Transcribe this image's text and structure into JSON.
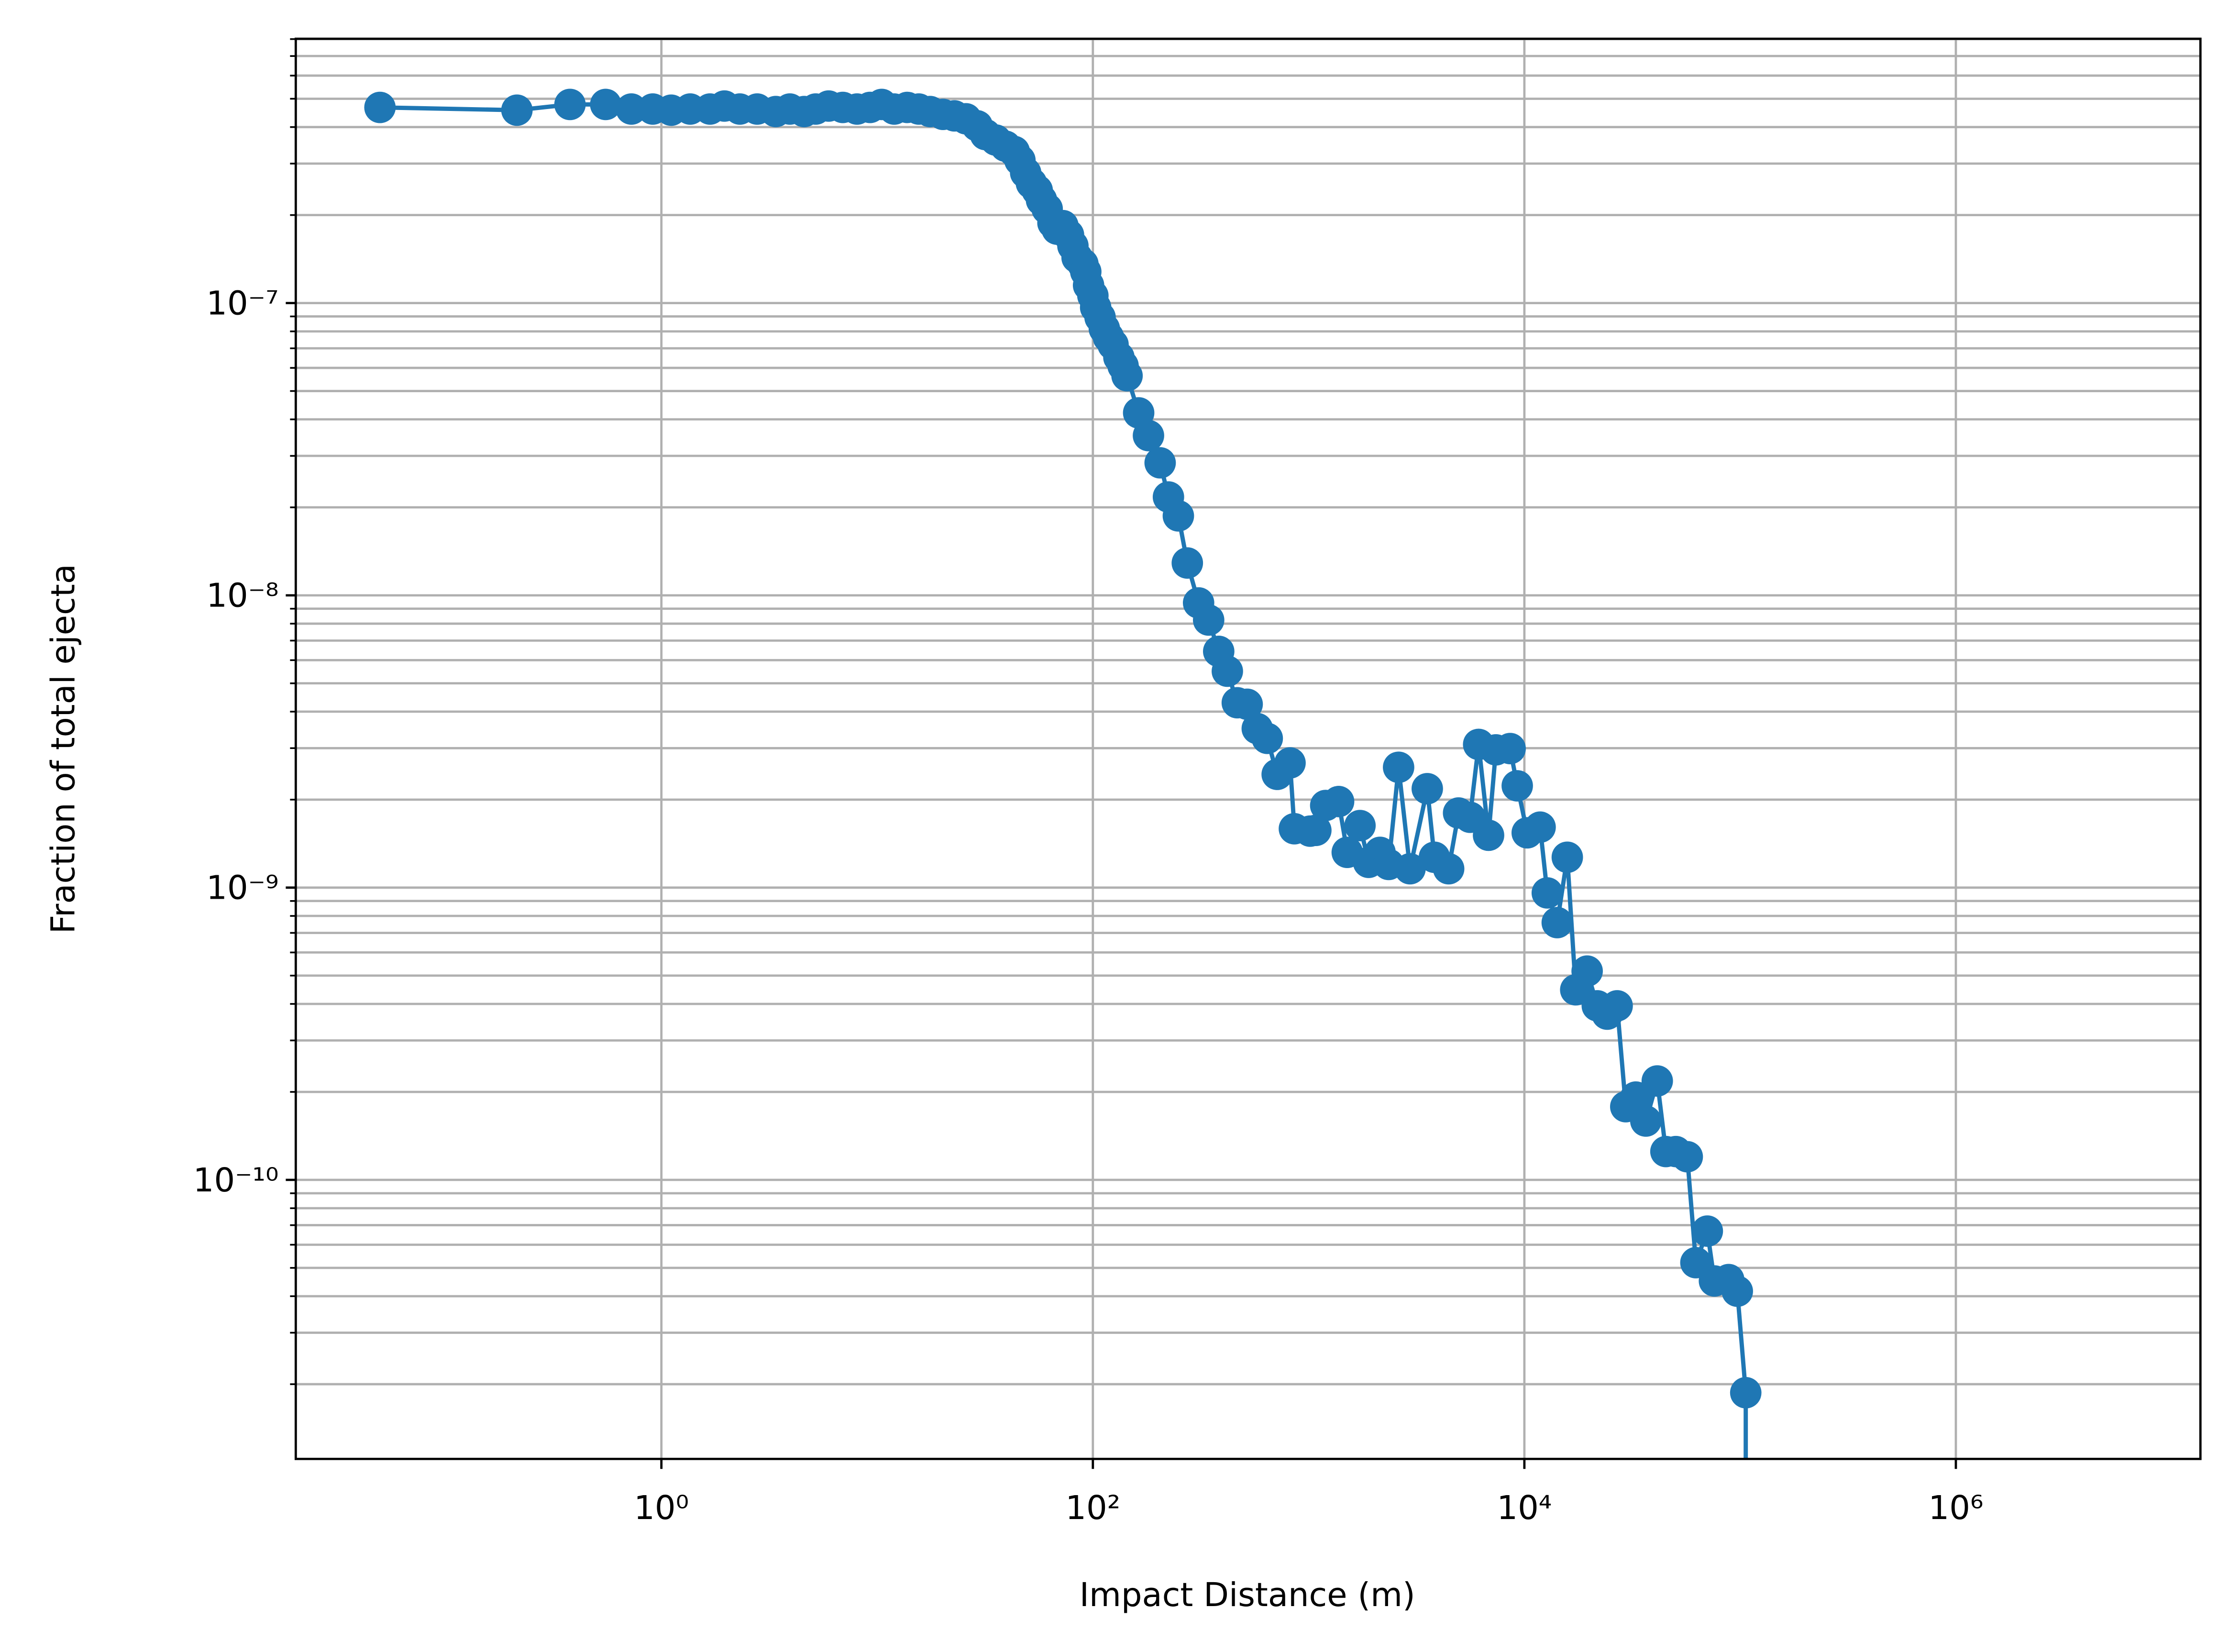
{
  "chart_data": {
    "type": "line",
    "x_label": "Impact Distance (m)",
    "y_label": "Fraction of total ejecta",
    "xscale": "log",
    "yscale": "log",
    "grid": true,
    "minor_grid": true,
    "color": "#1f77b4",
    "marker": "circle",
    "xlim": [
      0.0202,
      13600000
    ],
    "ylim": [
      1.11e-11,
      8.02e-07
    ],
    "xticks": [
      {
        "value": 1,
        "label": "10⁰"
      },
      {
        "value": 100,
        "label": "10²"
      },
      {
        "value": 10000,
        "label": "10⁴"
      },
      {
        "value": 1000000,
        "label": "10⁶"
      }
    ],
    "yticks": [
      {
        "value": 1e-10,
        "label": "10⁻¹⁰"
      },
      {
        "value": 1e-09,
        "label": "10⁻⁹"
      },
      {
        "value": 1e-08,
        "label": "10⁻⁸"
      },
      {
        "value": 1e-07,
        "label": "10⁻⁷"
      }
    ],
    "yminorticks": [
      2e-11,
      3e-11,
      4e-11,
      5e-11,
      6e-11,
      7e-11,
      8e-11,
      9e-11,
      2e-10,
      3e-10,
      4e-10,
      5e-10,
      6e-10,
      7e-10,
      8e-10,
      9e-10,
      2e-09,
      3e-09,
      4e-09,
      5e-09,
      6e-09,
      7e-09,
      8e-09,
      9e-09,
      2e-08,
      3e-08,
      4e-08,
      5e-08,
      6e-08,
      7e-08,
      8e-08,
      9e-08,
      2e-07,
      3e-07,
      4e-07,
      5e-07,
      6e-07,
      7e-07,
      8e-07
    ],
    "x": [
      0.0496,
      0.214,
      0.377,
      0.552,
      0.726,
      0.912,
      1.11,
      1.36,
      1.68,
      1.96,
      2.31,
      2.78,
      3.39,
      3.94,
      4.59,
      5.19,
      5.96,
      6.93,
      8.07,
      9.27,
      10.5,
      12.0,
      13.8,
      15.6,
      17.6,
      20.2,
      22.8,
      25.8,
      29.1,
      31.8,
      35.5,
      39.4,
      43.2,
      45.9,
      48.8,
      51.9,
      55.2,
      57.8,
      61.4,
      65.3,
      68.3,
      72.6,
      77.1,
      80.8,
      84.5,
      89.9,
      92.7,
      95.5,
      100,
      103,
      108,
      113,
      118,
      124,
      132,
      138,
      144,
      163,
      181,
      205,
      224,
      249,
      274,
      309,
      344,
      383,
      420,
      467,
      519,
      578,
      643,
      715,
      820,
      859,
      1016,
      1080,
      1200,
      1377,
      1510,
      1730,
      1897,
      2143,
      2350,
      2612,
      2951,
      3548,
      3828,
      4457,
      4955,
      5598,
      6138,
      6823,
      7379,
      8590,
      9268,
      10310,
      11830,
      12770,
      14200,
      15810,
      17300,
      19540,
      21780,
      24210,
      26920,
      29510,
      32890,
      36560,
      41300,
      45290,
      50350,
      56890,
      62370,
      70470,
      76030,
      88510,
      97050,
      106200,
      106200
    ],
    "values": [
      4.67e-07,
      4.57e-07,
      4.78e-07,
      4.78e-07,
      4.61e-07,
      4.61e-07,
      4.57e-07,
      4.61e-07,
      4.61e-07,
      4.72e-07,
      4.61e-07,
      4.61e-07,
      4.52e-07,
      4.61e-07,
      4.52e-07,
      4.61e-07,
      4.72e-07,
      4.67e-07,
      4.61e-07,
      4.67e-07,
      4.78e-07,
      4.61e-07,
      4.67e-07,
      4.61e-07,
      4.52e-07,
      4.42e-07,
      4.37e-07,
      4.27e-07,
      4.04e-07,
      3.77e-07,
      3.61e-07,
      3.44e-07,
      3.3e-07,
      3.08e-07,
      2.79e-07,
      2.57e-07,
      2.43e-07,
      2.25e-07,
      2.1e-07,
      1.88e-07,
      1.79e-07,
      1.84e-07,
      1.71e-07,
      1.57e-07,
      1.43e-07,
      1.36e-07,
      1.28e-07,
      1.15e-07,
      1.06e-07,
      9.66e-08,
      8.93e-08,
      8.17e-08,
      7.64e-08,
      7.21e-08,
      6.52e-08,
      6.1e-08,
      5.64e-08,
      4.21e-08,
      3.52e-08,
      2.84e-08,
      2.17e-08,
      1.87e-08,
      1.29e-08,
      9.42e-09,
      8.23e-09,
      6.43e-09,
      5.5e-09,
      4.29e-09,
      4.24e-09,
      3.5e-09,
      3.24e-09,
      2.44e-09,
      2.67e-09,
      1.59e-09,
      1.56e-09,
      1.57e-09,
      1.91e-09,
      1.97e-09,
      1.32e-09,
      1.63e-09,
      1.22e-09,
      1.32e-09,
      1.2e-09,
      2.58e-09,
      1.16e-09,
      2.18e-09,
      1.27e-09,
      1.16e-09,
      1.8e-09,
      1.74e-09,
      3.09e-09,
      1.51e-09,
      2.96e-09,
      2.99e-09,
      2.23e-09,
      1.54e-09,
      1.61e-09,
      9.59e-10,
      7.59e-10,
      1.27e-09,
      4.47e-10,
      5.18e-10,
      3.94e-10,
      3.69e-10,
      3.94e-10,
      1.78e-10,
      1.92e-10,
      1.59e-10,
      2.18e-10,
      1.25e-10,
      1.25e-10,
      1.2e-10,
      5.21e-11,
      6.68e-11,
      4.51e-11,
      4.56e-11,
      4.16e-11,
      1.87e-11,
      5e-12
    ]
  }
}
